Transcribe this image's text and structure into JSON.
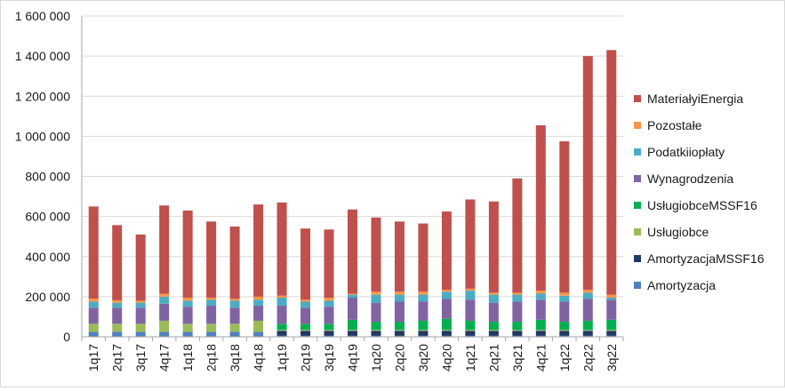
{
  "chart_data": {
    "type": "bar",
    "stacked": true,
    "title": "",
    "xlabel": "",
    "ylabel": "",
    "ylim": [
      0,
      1600000
    ],
    "y_ticks": [
      0,
      200000,
      400000,
      600000,
      800000,
      1000000,
      1200000,
      1400000,
      1600000
    ],
    "y_tick_labels": [
      "0",
      "200 000",
      "400 000",
      "600 000",
      "800 000",
      "1 000 000",
      "1 200 000",
      "1 400 000",
      "1 600 000"
    ],
    "grid": true,
    "legend_position": "right",
    "categories": [
      "1q17",
      "2q17",
      "3q17",
      "4q17",
      "1q18",
      "2q18",
      "3q18",
      "4q18",
      "1q19",
      "2q19",
      "3q19",
      "4q19",
      "1q20",
      "2q20",
      "3q20",
      "4q20",
      "1q21",
      "2q21",
      "3q21",
      "4q21",
      "1q22",
      "2q22",
      "3q22"
    ],
    "series": [
      {
        "name": "Amortyzacja",
        "color": "#4f81bd",
        "values": [
          25000,
          25000,
          25000,
          25000,
          25000,
          25000,
          25000,
          25000,
          5000,
          5000,
          5000,
          5000,
          5000,
          5000,
          5000,
          5000,
          5000,
          5000,
          5000,
          5000,
          5000,
          5000,
          5000
        ]
      },
      {
        "name": "AmortyzacjaMSSF16",
        "color": "#1f3864",
        "values": [
          0,
          0,
          0,
          0,
          0,
          0,
          0,
          0,
          25000,
          25000,
          25000,
          25000,
          25000,
          25000,
          25000,
          25000,
          25000,
          25000,
          25000,
          25000,
          25000,
          25000,
          25000
        ]
      },
      {
        "name": "Usługiobce",
        "color": "#9bbb59",
        "values": [
          40000,
          40000,
          40000,
          55000,
          40000,
          40000,
          40000,
          55000,
          5000,
          5000,
          5000,
          5000,
          5000,
          5000,
          5000,
          5000,
          5000,
          5000,
          5000,
          5000,
          5000,
          5000,
          5000
        ]
      },
      {
        "name": "UsługiobceMSSF16",
        "color": "#00b050",
        "values": [
          0,
          0,
          0,
          0,
          0,
          0,
          0,
          0,
          30000,
          30000,
          30000,
          50000,
          40000,
          40000,
          45000,
          55000,
          45000,
          40000,
          40000,
          50000,
          40000,
          45000,
          50000
        ]
      },
      {
        "name": "Wynagrodzenia",
        "color": "#8064a2",
        "values": [
          80000,
          80000,
          80000,
          85000,
          85000,
          90000,
          80000,
          75000,
          90000,
          80000,
          85000,
          110000,
          95000,
          100000,
          95000,
          100000,
          105000,
          95000,
          100000,
          100000,
          100000,
          110000,
          100000
        ]
      },
      {
        "name": "Podatkiiopłaty",
        "color": "#4bacc6",
        "values": [
          30000,
          25000,
          25000,
          35000,
          30000,
          30000,
          35000,
          30000,
          40000,
          30000,
          30000,
          15000,
          40000,
          35000,
          35000,
          35000,
          45000,
          40000,
          35000,
          30000,
          30000,
          30000,
          10000
        ]
      },
      {
        "name": "Pozostałe",
        "color": "#f79646",
        "values": [
          15000,
          12000,
          10000,
          15000,
          15000,
          10000,
          10000,
          15000,
          10000,
          10000,
          15000,
          5000,
          15000,
          15000,
          15000,
          10000,
          10000,
          10000,
          10000,
          15000,
          15000,
          15000,
          15000
        ]
      },
      {
        "name": "MateriałyiEnergia",
        "color": "#c0504d",
        "values": [
          460000,
          375000,
          330000,
          440000,
          435000,
          380000,
          360000,
          460000,
          465000,
          355000,
          340000,
          420000,
          370000,
          350000,
          340000,
          390000,
          445000,
          455000,
          570000,
          825000,
          755000,
          1165000,
          1220000
        ]
      }
    ]
  }
}
